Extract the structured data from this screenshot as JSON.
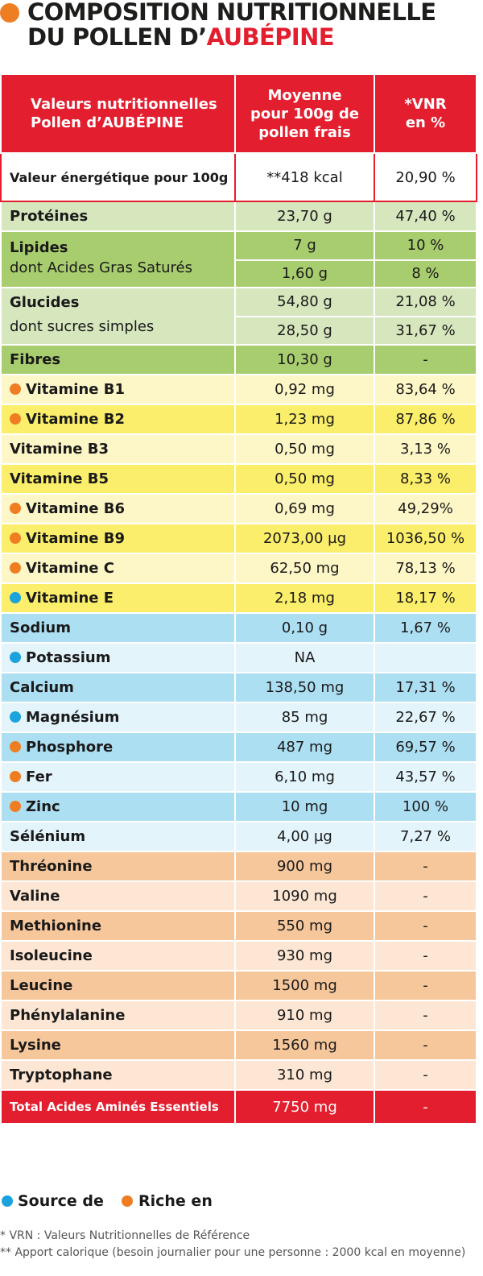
{
  "title": {
    "line1": "COMPOSITION NUTRITIONNELLE",
    "line2_prefix": "DU POLLEN D’",
    "line2_highlight": "AUBÉPINE"
  },
  "colors": {
    "red": "#e31e2e",
    "orange_dot": "#ef7d22",
    "blue_dot": "#1aa3dd"
  },
  "table": {
    "headers": {
      "col1_line1": "Valeurs nutritionnelles",
      "col1_line2": "Pollen d’AUBÉPINE",
      "col2_line1": "Moyenne",
      "col2_line2": "pour 100g de",
      "col2_line3": "pollen frais",
      "col3_line1": "*VNR",
      "col3_line2": "en %"
    },
    "energy": {
      "label": "Valeur énergétique pour 100g",
      "value": "**418 kcal",
      "vnr": "20,90 %"
    },
    "proteines": {
      "label": "Protéines",
      "value": "23,70 g",
      "vnr": "47,40 %"
    },
    "lipides": {
      "label": "Lipides",
      "sub_label": "dont Acides Gras Saturés",
      "value": "7 g",
      "vnr": "10 %",
      "sub_value": "1,60 g",
      "sub_vnr": "8 %"
    },
    "glucides": {
      "label": "Glucides",
      "sub_label": "dont sucres simples",
      "value": "54,80 g",
      "vnr": "21,08 %",
      "sub_value": "28,50 g",
      "sub_vnr": "31,67 %"
    },
    "fibres": {
      "label": "Fibres",
      "value": "10,30 g",
      "vnr": "-"
    },
    "vitamins": [
      {
        "label": "Vitamine B1",
        "value": "0,92 mg",
        "vnr": "83,64 %",
        "marker": "orange"
      },
      {
        "label": "Vitamine B2",
        "value": "1,23 mg",
        "vnr": "87,86 %",
        "marker": "orange"
      },
      {
        "label": "Vitamine B3",
        "value": "0,50 mg",
        "vnr": "3,13 %",
        "marker": "none"
      },
      {
        "label": "Vitamine B5",
        "value": "0,50 mg",
        "vnr": "8,33 %",
        "marker": "none"
      },
      {
        "label": "Vitamine B6",
        "value": "0,69 mg",
        "vnr": "49,29%",
        "marker": "orange"
      },
      {
        "label": "Vitamine B9",
        "value": "2073,00 µg",
        "vnr": "1036,50 %",
        "marker": "orange"
      },
      {
        "label": "Vitamine C",
        "value": "62,50 mg",
        "vnr": "78,13 %",
        "marker": "orange"
      },
      {
        "label": "Vitamine E",
        "value": "2,18 mg",
        "vnr": "18,17 %",
        "marker": "blue"
      }
    ],
    "minerals": [
      {
        "label": "Sodium",
        "value": "0,10 g",
        "vnr": "1,67 %",
        "marker": "none"
      },
      {
        "label": "Potassium",
        "value": "NA",
        "vnr": "",
        "marker": "blue"
      },
      {
        "label": "Calcium",
        "value": "138,50 mg",
        "vnr": "17,31 %",
        "marker": "none"
      },
      {
        "label": "Magnésium",
        "value": "85 mg",
        "vnr": "22,67 %",
        "marker": "blue"
      },
      {
        "label": "Phosphore",
        "value": "487 mg",
        "vnr": "69,57 %",
        "marker": "orange"
      },
      {
        "label": "Fer",
        "value": "6,10 mg",
        "vnr": "43,57 %",
        "marker": "orange"
      },
      {
        "label": "Zinc",
        "value": "10 mg",
        "vnr": "100 %",
        "marker": "orange"
      },
      {
        "label": "Sélénium",
        "value": "4,00 µg",
        "vnr": "7,27 %",
        "marker": "none"
      }
    ],
    "amino_acids": [
      {
        "label": "Thréonine",
        "value": "900 mg",
        "vnr": "-"
      },
      {
        "label": "Valine",
        "value": "1090 mg",
        "vnr": "-"
      },
      {
        "label": "Methionine",
        "value": "550 mg",
        "vnr": "-"
      },
      {
        "label": "Isoleucine",
        "value": "930 mg",
        "vnr": "-"
      },
      {
        "label": "Leucine",
        "value": "1500 mg",
        "vnr": "-"
      },
      {
        "label": "Phénylalanine",
        "value": "910 mg",
        "vnr": "-"
      },
      {
        "label": "Lysine",
        "value": "1560 mg",
        "vnr": "-"
      },
      {
        "label": "Tryptophane",
        "value": "310 mg",
        "vnr": "-"
      }
    ],
    "total": {
      "label": "Total Acides Aminés Essentiels",
      "value": "7750 mg",
      "vnr": "-"
    }
  },
  "legend": {
    "source": "Source de",
    "riche": "Riche en"
  },
  "footnotes": {
    "vrn": "* VRN : Valeurs Nutritionnelles de Référence",
    "apport": "** Apport calorique (besoin journalier pour une personne : 2000 kcal en moyenne)"
  }
}
